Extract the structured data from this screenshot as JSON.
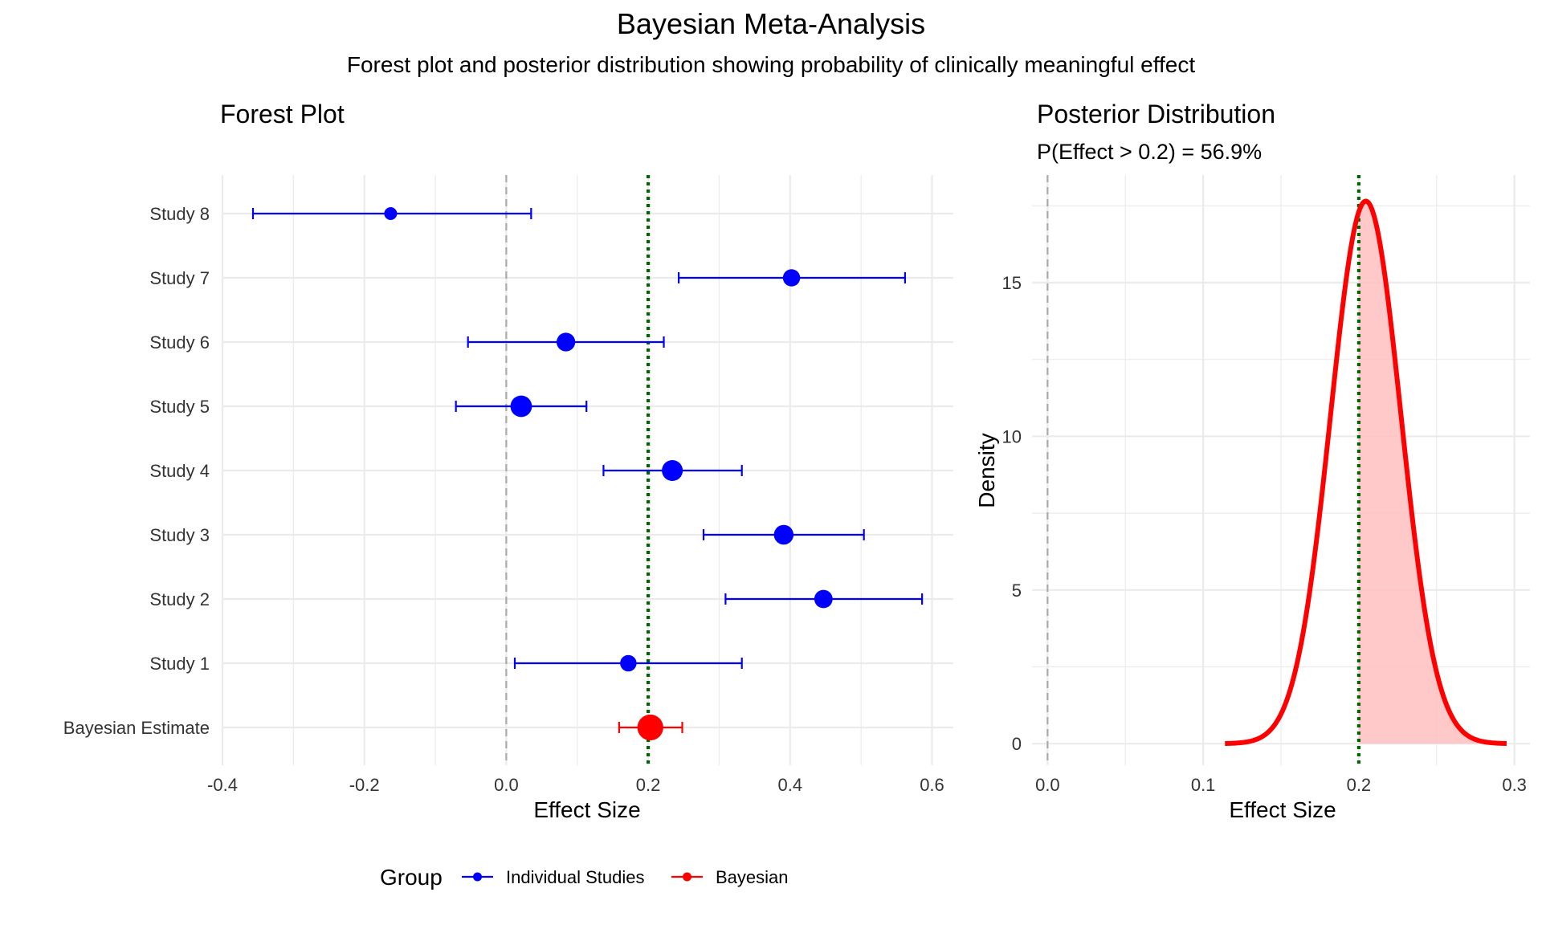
{
  "title": "Bayesian Meta-Analysis",
  "subtitle": "Forest plot and posterior distribution showing probability of clinically meaningful effect",
  "colors": {
    "individual": "#0000FF",
    "bayesian": "#FF0000",
    "threshold": "#006400",
    "null_line": "#AAAAAA",
    "posterior_fill": "#FFC0C0",
    "grid": "#EBEBEB"
  },
  "legend": {
    "title": "Group",
    "items": [
      {
        "label": "Individual Studies",
        "color": "#0000FF"
      },
      {
        "label": "Bayesian",
        "color": "#FF0000"
      }
    ]
  },
  "chart_data": [
    {
      "type": "forest",
      "title": "Forest Plot",
      "xlabel": "Effect Size",
      "ylabel": "",
      "xlim": [
        -0.4,
        0.63
      ],
      "xticks": [
        -0.4,
        -0.2,
        0.0,
        0.2,
        0.4,
        0.6
      ],
      "xtick_labels": [
        "-0.4",
        "-0.2",
        "0.0",
        "0.2",
        "0.4",
        "0.6"
      ],
      "null_line": 0.0,
      "threshold_line": 0.2,
      "grid": true,
      "rows": [
        {
          "label": "Study 8",
          "estimate": -0.163,
          "lower": -0.357,
          "upper": 0.035,
          "weight": 1,
          "group": "Individual Studies"
        },
        {
          "label": "Study 7",
          "estimate": 0.402,
          "lower": 0.243,
          "upper": 0.562,
          "weight": 2,
          "group": "Individual Studies"
        },
        {
          "label": "Study 6",
          "estimate": 0.084,
          "lower": -0.054,
          "upper": 0.222,
          "weight": 2.4,
          "group": "Individual Studies"
        },
        {
          "label": "Study 5",
          "estimate": 0.021,
          "lower": -0.071,
          "upper": 0.113,
          "weight": 3.3,
          "group": "Individual Studies"
        },
        {
          "label": "Study 4",
          "estimate": 0.234,
          "lower": 0.137,
          "upper": 0.332,
          "weight": 3.1,
          "group": "Individual Studies"
        },
        {
          "label": "Study 3",
          "estimate": 0.391,
          "lower": 0.278,
          "upper": 0.504,
          "weight": 2.7,
          "group": "Individual Studies"
        },
        {
          "label": "Study 2",
          "estimate": 0.447,
          "lower": 0.309,
          "upper": 0.586,
          "weight": 2.3,
          "group": "Individual Studies"
        },
        {
          "label": "Study 1",
          "estimate": 0.172,
          "lower": 0.012,
          "upper": 0.332,
          "weight": 1.8,
          "group": "Individual Studies"
        },
        {
          "label": "Bayesian Estimate",
          "estimate": 0.203,
          "lower": 0.159,
          "upper": 0.248,
          "weight": 5,
          "group": "Bayesian"
        }
      ]
    },
    {
      "type": "area",
      "title": "Posterior Distribution",
      "subtitle": "P(Effect > 0.2) = 56.9%",
      "xlabel": "Effect Size",
      "ylabel": "Density",
      "xlim": [
        -0.01,
        0.31
      ],
      "ylim": [
        -0.7,
        18.5
      ],
      "xticks": [
        0.0,
        0.1,
        0.2,
        0.3
      ],
      "xtick_labels": [
        "0.0",
        "0.1",
        "0.2",
        "0.3"
      ],
      "yticks": [
        0,
        5,
        10,
        15
      ],
      "ytick_labels": [
        "0",
        "5",
        "10",
        "15"
      ],
      "null_line": 0.0,
      "threshold_line": 0.2,
      "shade_above": 0.2,
      "grid": true,
      "distribution": {
        "family": "normal",
        "mean": 0.2045,
        "sd": 0.0226,
        "from": 0.114,
        "to": 0.295
      }
    }
  ]
}
